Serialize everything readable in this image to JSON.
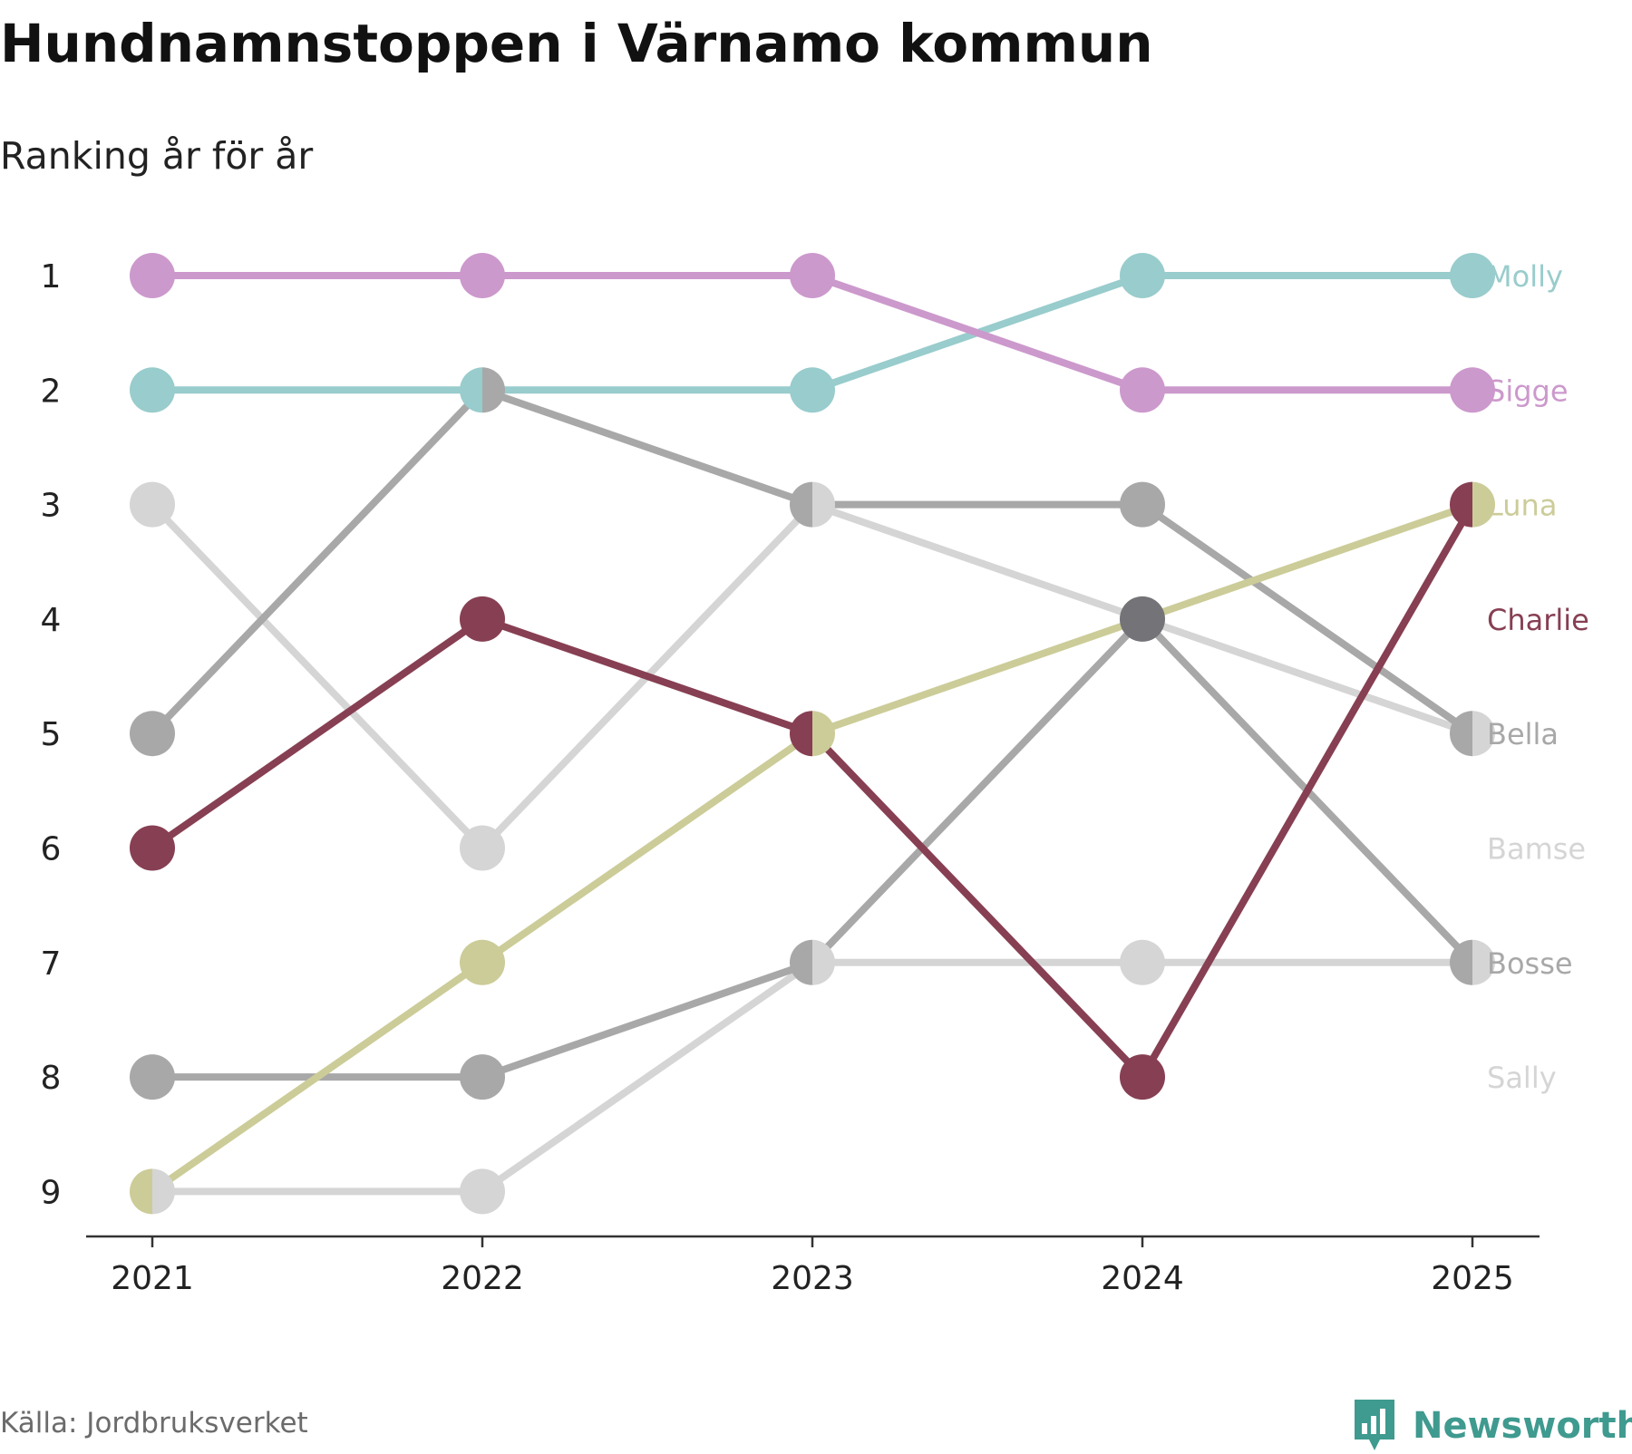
{
  "title": "Hundnamnstoppen i Värnamo kommun",
  "subtitle": "Ranking år för år",
  "source": "Källa: Jordbruksverket",
  "brand": {
    "name": "Newsworthy",
    "icon": "newsworthy-logo-icon",
    "color": "#3f9a8f"
  },
  "chart_data": {
    "type": "line",
    "subtype": "bump",
    "title": "Hundnamnstoppen i Värnamo kommun",
    "subtitle": "Ranking år för år",
    "xlabel": "",
    "ylabel": "",
    "categories": [
      "2021",
      "2022",
      "2023",
      "2024",
      "2025"
    ],
    "y_ticks": [
      "1",
      "2",
      "3",
      "4",
      "5",
      "6",
      "7",
      "8",
      "9"
    ],
    "ylim": [
      1,
      9
    ],
    "y_inverted": true,
    "grid": false,
    "legend": "direct labels at right",
    "series": [
      {
        "name": "Sally",
        "color": "#d5d5d5",
        "values": [
          9,
          9,
          7,
          7,
          7
        ]
      },
      {
        "name": "Bamse",
        "color": "#d5d5d5",
        "values": [
          3,
          6,
          3,
          4,
          5
        ]
      },
      {
        "name": "Bosse",
        "color": "#a8a8a8",
        "values": [
          8,
          8,
          7,
          4,
          7
        ]
      },
      {
        "name": "Bella",
        "color": "#a8a8a8",
        "values": [
          5,
          2,
          3,
          3,
          5
        ]
      },
      {
        "name": "Luna",
        "color": "#cccc99",
        "values": [
          9,
          7,
          5,
          4,
          3
        ]
      },
      {
        "name": "Charlie",
        "color": "#873f53",
        "values": [
          6,
          4,
          5,
          8,
          3
        ]
      },
      {
        "name": "Molly",
        "color": "#99cccc",
        "values": [
          2,
          2,
          2,
          1,
          1
        ]
      },
      {
        "name": "Sigge",
        "color": "#cc99cc",
        "values": [
          1,
          1,
          1,
          2,
          2
        ]
      }
    ],
    "right_labels": [
      {
        "name": "Molly",
        "rank": 1,
        "color": "#99cccc"
      },
      {
        "name": "Sigge",
        "rank": 2,
        "color": "#cc99cc"
      },
      {
        "name": "Luna",
        "rank": 3,
        "color": "#cccc99"
      },
      {
        "name": "Charlie",
        "rank": 4,
        "color": "#873f53"
      },
      {
        "name": "Bella",
        "rank": 5,
        "color": "#a8a8a8"
      },
      {
        "name": "Bamse",
        "rank": 6,
        "color": "#d5d5d5"
      },
      {
        "name": "Bosse",
        "rank": 7,
        "color": "#a8a8a8"
      },
      {
        "name": "Sally",
        "rank": 8,
        "color": "#d5d5d5"
      }
    ],
    "overlap_color": "#737378"
  }
}
